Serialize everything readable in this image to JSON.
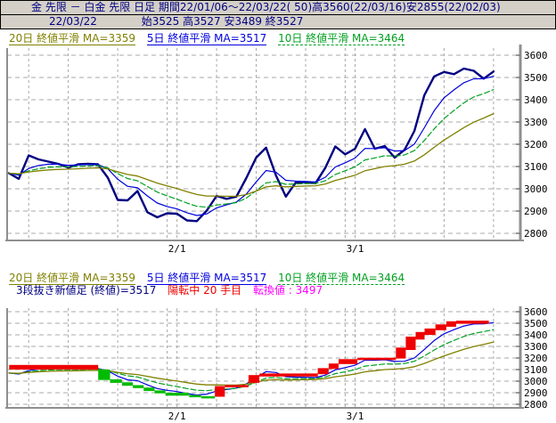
{
  "title_bar": {
    "text": "金 先限 － 白金 先限 日足 期間22/01/06～22/03/22( 50)高3560(22/03/16)安2855(22/02/03)"
  },
  "info_bar": {
    "date": "22/03/22",
    "ohlc": "始3525 高3527 安3489 終3527"
  },
  "colors": {
    "title_fg": "#000080",
    "title_bg": "#d4d0c8",
    "price": "#000080",
    "ma5": "#0000dd",
    "ma10": "#00a020",
    "ma20": "#808000",
    "up_block": "#ee0000",
    "down_block": "#00bb00",
    "status_red": "#ee0000",
    "tenkan_magenta": "#ff00ff",
    "grid": "#a8a8a8",
    "frame": "#8f8f8f"
  },
  "legend_ma": {
    "ma20": {
      "label": "20日 終値平滑 MA=3359",
      "color": "#808000",
      "style": "solid"
    },
    "ma5": {
      "label": "5日 終値平滑 MA=3517",
      "color": "#0000dd",
      "style": "solid"
    },
    "ma10": {
      "label": "10日 終値平滑 MA=3464",
      "color": "#00a020",
      "style": "dashed"
    }
  },
  "legend_break": {
    "name": {
      "label": "3段抜き新値足 (終値)=3517",
      "color": "#000080"
    },
    "status": {
      "label": "陽転中  20 手目",
      "color": "#ee0000"
    },
    "tenkan": {
      "label": "転換値 : 3497",
      "color": "#ff00ff"
    }
  },
  "chart_data": [
    {
      "type": "line",
      "title": "金先限－白金先限 日足 終値と終値平滑線",
      "period": "22/01/06～22/03/22 (50日)",
      "high": {
        "value": 3560,
        "date": "22/03/16"
      },
      "low": {
        "value": 2855,
        "date": "22/02/03"
      },
      "last_close": 3527,
      "ylim": [
        2800,
        3600
      ],
      "y_ticks": [
        "3600",
        "3500",
        "3400",
        "3300",
        "3200",
        "3100",
        "3000",
        "2900",
        "2800"
      ],
      "x_ticks": [
        {
          "label": "2/1",
          "day": 17
        },
        {
          "label": "3/1",
          "day": 35
        }
      ],
      "grid_days": [
        2,
        6,
        11,
        16,
        17,
        21,
        25,
        30,
        34,
        35,
        39,
        44,
        49
      ],
      "grid": true,
      "legend_position": "top",
      "series": [
        {
          "name": "close-price",
          "color": "#000080",
          "width": 2.4,
          "values": [
            3070,
            3045,
            3150,
            3132,
            3122,
            3112,
            3095,
            3110,
            3112,
            3110,
            3050,
            2950,
            2948,
            2990,
            2895,
            2872,
            2890,
            2888,
            2858,
            2855,
            2902,
            2968,
            2955,
            2965,
            3048,
            3140,
            3185,
            3060,
            2965,
            3028,
            3030,
            3025,
            3095,
            3190,
            3155,
            3180,
            3268,
            3180,
            3192,
            3140,
            3175,
            3260,
            3420,
            3505,
            3525,
            3515,
            3540,
            3530,
            3495,
            3527
          ]
        },
        {
          "name": "ma5-smoothed-close",
          "color": "#0000dd",
          "width": 1.2,
          "ema": 5,
          "final": 3517
        },
        {
          "name": "ma10-smoothed-close",
          "color": "#00a020",
          "width": 1.2,
          "ema": 10,
          "final": 3464,
          "dash": "6 3"
        },
        {
          "name": "ma20-smoothed-close",
          "color": "#808000",
          "width": 1.3,
          "ema": 20,
          "final": 3359
        }
      ]
    },
    {
      "type": "line-break",
      "title": "3段抜き新値足 (終値)",
      "last_value": 3517,
      "state": "陽転中",
      "bar_count": 20,
      "reversal_value": 3497,
      "ylim": [
        2800,
        3600
      ],
      "y_ticks": [
        "3600",
        "3500",
        "3400",
        "3300",
        "3200",
        "3100",
        "3000",
        "2900",
        "2800"
      ],
      "x_ticks": [
        {
          "label": "2/1",
          "day": 17
        },
        {
          "label": "3/1",
          "day": 35
        }
      ],
      "colors": {
        "up": "#ee0000",
        "down": "#00bb00"
      },
      "blocks": [
        {
          "d": 0.3,
          "w": 9.0,
          "lo": 3100,
          "hi": 3140,
          "c": "r"
        },
        {
          "d": 9.3,
          "w": 1.2,
          "lo": 3010,
          "hi": 3100,
          "c": "g"
        },
        {
          "d": 10.5,
          "w": 1.2,
          "lo": 2985,
          "hi": 3015,
          "c": "g"
        },
        {
          "d": 11.7,
          "w": 1.1,
          "lo": 2960,
          "hi": 2990,
          "c": "g"
        },
        {
          "d": 12.8,
          "w": 1.1,
          "lo": 2940,
          "hi": 2965,
          "c": "g"
        },
        {
          "d": 13.9,
          "w": 1.1,
          "lo": 2915,
          "hi": 2945,
          "c": "g"
        },
        {
          "d": 15.0,
          "w": 1.1,
          "lo": 2895,
          "hi": 2920,
          "c": "g"
        },
        {
          "d": 16.1,
          "w": 2.4,
          "lo": 2875,
          "hi": 2900,
          "c": "g"
        },
        {
          "d": 18.5,
          "w": 1.2,
          "lo": 2862,
          "hi": 2880,
          "c": "g"
        },
        {
          "d": 19.7,
          "w": 1.4,
          "lo": 2855,
          "hi": 2870,
          "c": "g"
        },
        {
          "d": 21.1,
          "w": 1.0,
          "lo": 2866,
          "hi": 2958,
          "c": "r"
        },
        {
          "d": 22.1,
          "w": 2.4,
          "lo": 2950,
          "hi": 2966,
          "c": "r"
        },
        {
          "d": 24.5,
          "w": 1.1,
          "lo": 2985,
          "hi": 3052,
          "c": "r"
        },
        {
          "d": 25.6,
          "w": 5.9,
          "lo": 3040,
          "hi": 3066,
          "c": "r"
        },
        {
          "d": 31.5,
          "w": 1.1,
          "lo": 3060,
          "hi": 3112,
          "c": "r"
        },
        {
          "d": 32.6,
          "w": 1.0,
          "lo": 3105,
          "hi": 3152,
          "c": "r"
        },
        {
          "d": 33.6,
          "w": 1.9,
          "lo": 3148,
          "hi": 3190,
          "c": "r"
        },
        {
          "d": 35.5,
          "w": 3.9,
          "lo": 3182,
          "hi": 3202,
          "c": "r"
        },
        {
          "d": 39.4,
          "w": 1.0,
          "lo": 3195,
          "hi": 3290,
          "c": "r"
        },
        {
          "d": 40.4,
          "w": 1.0,
          "lo": 3270,
          "hi": 3385,
          "c": "r"
        },
        {
          "d": 41.4,
          "w": 0.9,
          "lo": 3360,
          "hi": 3425,
          "c": "r"
        },
        {
          "d": 42.3,
          "w": 1.1,
          "lo": 3400,
          "hi": 3455,
          "c": "r"
        },
        {
          "d": 43.4,
          "w": 1.1,
          "lo": 3440,
          "hi": 3490,
          "c": "r"
        },
        {
          "d": 44.5,
          "w": 1.0,
          "lo": 3470,
          "hi": 3517,
          "c": "r"
        },
        {
          "d": 45.5,
          "w": 3.3,
          "lo": 3495,
          "hi": 3522,
          "c": "r"
        }
      ]
    }
  ]
}
